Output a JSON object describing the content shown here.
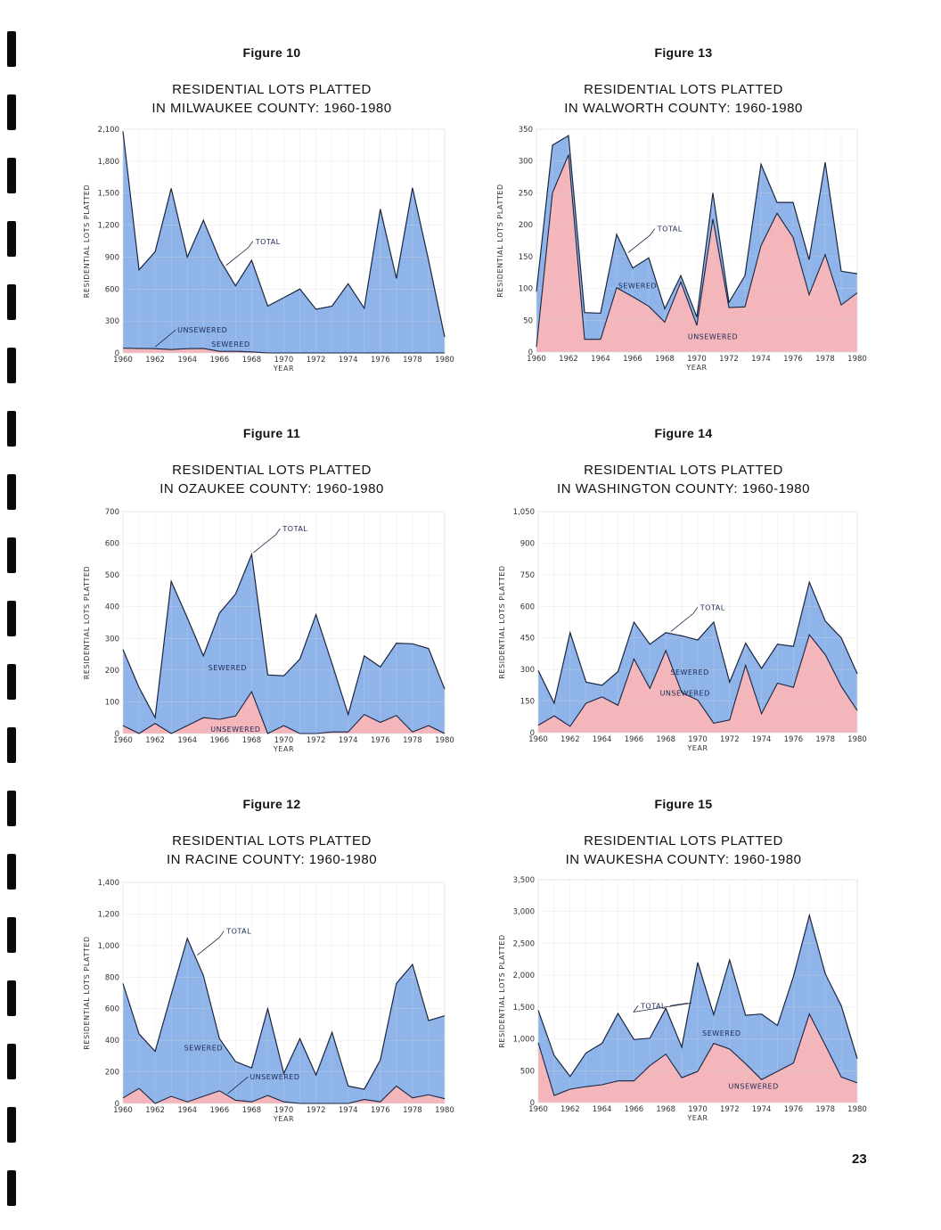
{
  "page": {
    "page_number": "23",
    "colors": {
      "sewered": "#8fb4ea",
      "unsewered": "#f4b5bb",
      "line": "#1a2540",
      "grid": "#d9d9d9"
    }
  },
  "chart_data": [
    {
      "id": "fig10",
      "figure_label": "Figure 10",
      "title_line1": "RESIDENTIAL LOTS PLATTED",
      "title_line2": "IN MILWAUKEE COUNTY: 1960-1980",
      "type": "area",
      "stacked": true,
      "xlabel": "YEAR",
      "ylabel": "RESIDENTIAL LOTS PLATTED",
      "ylim": [
        0,
        2100
      ],
      "yticks": [
        0,
        300,
        600,
        900,
        1200,
        1500,
        1800,
        2100
      ],
      "ytick_labels": [
        "0",
        "300",
        "600",
        "900",
        "1,200",
        "1,500",
        "1,800",
        "2,100"
      ],
      "xlim": [
        1960,
        1980
      ],
      "xticks": [
        1960,
        1962,
        1964,
        1966,
        1968,
        1970,
        1972,
        1974,
        1976,
        1978,
        1980
      ],
      "grid": true,
      "x": [
        1960,
        1961,
        1962,
        1963,
        1964,
        1965,
        1966,
        1967,
        1968,
        1969,
        1970,
        1971,
        1972,
        1973,
        1974,
        1975,
        1976,
        1977,
        1978,
        1979,
        1980
      ],
      "series": [
        {
          "name": "TOTAL",
          "values": [
            2080,
            780,
            950,
            1545,
            900,
            1245,
            880,
            630,
            870,
            440,
            520,
            600,
            410,
            440,
            650,
            420,
            1350,
            700,
            1550,
            870,
            150
          ]
        },
        {
          "name": "UNSEWERED",
          "values": [
            45,
            42,
            40,
            32,
            40,
            42,
            15,
            15,
            10,
            0,
            0,
            0,
            0,
            0,
            0,
            0,
            0,
            0,
            0,
            0,
            0
          ]
        }
      ],
      "annotations": [
        {
          "text": "TOTAL",
          "points_to": "total",
          "year": 1966.3
        },
        {
          "text": "SEWERED",
          "area": "sewered"
        },
        {
          "text": "UNSEWERED",
          "points_to": "unsewered",
          "year": 1962
        }
      ]
    },
    {
      "id": "fig13",
      "figure_label": "Figure 13",
      "title_line1": "RESIDENTIAL LOTS PLATTED",
      "title_line2": "IN WALWORTH COUNTY: 1960-1980",
      "type": "area",
      "stacked": true,
      "xlabel": "YEAR",
      "ylabel": "RESIDENTIAL LOTS PLATTED",
      "ylim": [
        0,
        350
      ],
      "yticks": [
        0,
        50,
        100,
        150,
        200,
        250,
        300,
        350
      ],
      "ytick_labels": [
        "0",
        "50",
        "100",
        "150",
        "200",
        "250",
        "300",
        "350"
      ],
      "xlim": [
        1960,
        1980
      ],
      "xticks": [
        1960,
        1962,
        1964,
        1966,
        1968,
        1970,
        1972,
        1974,
        1976,
        1978,
        1980
      ],
      "grid": true,
      "x": [
        1960,
        1961,
        1962,
        1963,
        1964,
        1965,
        1966,
        1967,
        1968,
        1969,
        1970,
        1971,
        1972,
        1973,
        1974,
        1975,
        1976,
        1977,
        1978,
        1979,
        1980
      ],
      "series": [
        {
          "name": "TOTAL",
          "values": [
            95,
            325,
            340,
            62,
            61,
            185,
            132,
            148,
            68,
            120,
            55,
            250,
            78,
            120,
            295,
            235,
            235,
            145,
            298,
            127,
            123
          ]
        },
        {
          "name": "UNSEWERED",
          "values": [
            8,
            250,
            310,
            20,
            20,
            101,
            87,
            72,
            47,
            110,
            42,
            209,
            70,
            71,
            167,
            218,
            180,
            90,
            153,
            74,
            93
          ]
        }
      ],
      "annotations": [
        {
          "text": "TOTAL",
          "points_to": "total",
          "year": 1965.6
        },
        {
          "text": "SEWERED",
          "area": "sewered"
        },
        {
          "text": "UNSEWERED",
          "area": "unsewered"
        }
      ]
    },
    {
      "id": "fig11",
      "figure_label": "Figure 11",
      "title_line1": "RESIDENTIAL LOTS PLATTED",
      "title_line2": "IN OZAUKEE COUNTY: 1960-1980",
      "type": "area",
      "stacked": true,
      "xlabel": "YEAR",
      "ylabel": "RESIDENTIAL LOTS PLATTED",
      "ylim": [
        0,
        700
      ],
      "yticks": [
        0,
        100,
        200,
        300,
        400,
        500,
        600,
        700
      ],
      "ytick_labels": [
        "0",
        "100",
        "200",
        "300",
        "400",
        "500",
        "600",
        "700"
      ],
      "xlim": [
        1960,
        1980
      ],
      "xticks": [
        1960,
        1962,
        1964,
        1966,
        1968,
        1970,
        1972,
        1974,
        1976,
        1978,
        1980
      ],
      "grid": true,
      "x": [
        1960,
        1961,
        1962,
        1963,
        1964,
        1965,
        1966,
        1967,
        1968,
        1969,
        1970,
        1971,
        1972,
        1973,
        1974,
        1975,
        1976,
        1977,
        1978,
        1979,
        1980
      ],
      "series": [
        {
          "name": "TOTAL",
          "values": [
            265,
            145,
            50,
            480,
            365,
            245,
            380,
            440,
            565,
            185,
            182,
            235,
            375,
            220,
            60,
            245,
            210,
            285,
            283,
            268,
            140
          ]
        },
        {
          "name": "UNSEWERED",
          "values": [
            25,
            0,
            32,
            0,
            25,
            50,
            45,
            55,
            132,
            0,
            25,
            0,
            0,
            5,
            5,
            60,
            35,
            57,
            5,
            25,
            0
          ]
        }
      ],
      "annotations": [
        {
          "text": "TOTAL",
          "points_to": "total",
          "year": 1968
        },
        {
          "text": "SEWERED",
          "area": "sewered"
        },
        {
          "text": "UNSEWERED",
          "area": "unsewered"
        }
      ]
    },
    {
      "id": "fig14",
      "figure_label": "Figure 14",
      "title_line1": "RESIDENTIAL LOTS PLATTED",
      "title_line2": "IN WASHINGTON COUNTY: 1960-1980",
      "type": "area",
      "stacked": true,
      "xlabel": "YEAR",
      "ylabel": "RESIDENTIAL LOTS PLATTED",
      "ylim": [
        0,
        1050
      ],
      "yticks": [
        0,
        150,
        300,
        450,
        600,
        750,
        900,
        1050
      ],
      "ytick_labels": [
        "0",
        "150",
        "300",
        "450",
        "600",
        "750",
        "900",
        "1,050"
      ],
      "xlim": [
        1960,
        1980
      ],
      "xticks": [
        1960,
        1962,
        1964,
        1966,
        1968,
        1970,
        1972,
        1974,
        1976,
        1978,
        1980
      ],
      "grid": true,
      "x": [
        1960,
        1961,
        1962,
        1963,
        1964,
        1965,
        1966,
        1967,
        1968,
        1969,
        1970,
        1971,
        1972,
        1973,
        1974,
        1975,
        1976,
        1977,
        1978,
        1979,
        1980
      ],
      "series": [
        {
          "name": "TOTAL",
          "values": [
            295,
            140,
            475,
            240,
            225,
            290,
            525,
            420,
            475,
            460,
            440,
            525,
            240,
            425,
            305,
            420,
            410,
            715,
            530,
            450,
            280
          ]
        },
        {
          "name": "UNSEWERED",
          "values": [
            35,
            80,
            30,
            140,
            170,
            130,
            350,
            210,
            390,
            190,
            155,
            45,
            60,
            320,
            90,
            235,
            215,
            465,
            370,
            220,
            105
          ]
        }
      ],
      "annotations": [
        {
          "text": "TOTAL",
          "points_to": "total",
          "year": 1968.2
        },
        {
          "text": "SEWERED",
          "area": "sewered"
        },
        {
          "text": "UNSEWERED",
          "area": "unsewered"
        }
      ]
    },
    {
      "id": "fig12",
      "figure_label": "Figure 12",
      "title_line1": "RESIDENTIAL LOTS PLATTED",
      "title_line2": "IN RACINE COUNTY: 1960-1980",
      "type": "area",
      "stacked": true,
      "xlabel": "YEAR",
      "ylabel": "RESIDENTIAL LOTS PLATTED",
      "ylim": [
        0,
        1400
      ],
      "yticks": [
        0,
        200,
        400,
        600,
        800,
        1000,
        1200,
        1400
      ],
      "ytick_labels": [
        "0",
        "200",
        "400",
        "600",
        "800",
        "1,000",
        "1,200",
        "1,400"
      ],
      "xlim": [
        1960,
        1980
      ],
      "xticks": [
        1960,
        1962,
        1964,
        1966,
        1968,
        1970,
        1972,
        1974,
        1976,
        1978,
        1980
      ],
      "grid": true,
      "x": [
        1960,
        1961,
        1962,
        1963,
        1964,
        1965,
        1966,
        1967,
        1968,
        1969,
        1970,
        1971,
        1972,
        1973,
        1974,
        1975,
        1976,
        1977,
        1978,
        1979,
        1980
      ],
      "series": [
        {
          "name": "TOTAL",
          "values": [
            760,
            440,
            330,
            690,
            1045,
            810,
            410,
            265,
            225,
            600,
            190,
            410,
            180,
            450,
            110,
            90,
            275,
            760,
            880,
            525,
            555
          ]
        },
        {
          "name": "UNSEWERED",
          "values": [
            35,
            95,
            0,
            45,
            10,
            45,
            80,
            20,
            10,
            50,
            10,
            0,
            0,
            0,
            0,
            25,
            10,
            110,
            35,
            55,
            30
          ]
        }
      ],
      "annotations": [
        {
          "text": "TOTAL",
          "points_to": "total",
          "year": 1964.5
        },
        {
          "text": "SEWERED",
          "area": "sewered"
        },
        {
          "text": "UNSEWERED",
          "points_to": "unsewered",
          "year": 1966.5
        }
      ]
    },
    {
      "id": "fig15",
      "figure_label": "Figure 15",
      "title_line1": "RESIDENTIAL LOTS PLATTED",
      "title_line2": "IN WAUKESHA COUNTY: 1960-1980",
      "type": "area",
      "stacked": true,
      "xlabel": "YEAR",
      "ylabel": "RESIDENTIAL LOTS PLATTED",
      "ylim": [
        0,
        3500
      ],
      "yticks": [
        0,
        500,
        1000,
        1500,
        2000,
        2500,
        3000,
        3500
      ],
      "ytick_labels": [
        "0",
        "500",
        "1,000",
        "1,500",
        "2,000",
        "2,500",
        "3,000",
        "3,500"
      ],
      "xlim": [
        1960,
        1980
      ],
      "xticks": [
        1960,
        1962,
        1964,
        1966,
        1968,
        1970,
        1972,
        1974,
        1976,
        1978,
        1980
      ],
      "grid": true,
      "x": [
        1960,
        1961,
        1962,
        1963,
        1964,
        1965,
        1966,
        1967,
        1968,
        1969,
        1970,
        1971,
        1972,
        1973,
        1974,
        1975,
        1976,
        1977,
        1978,
        1979,
        1980
      ],
      "series": [
        {
          "name": "TOTAL",
          "values": [
            1450,
            740,
            410,
            780,
            930,
            1400,
            990,
            1010,
            1480,
            870,
            2200,
            1380,
            2240,
            1370,
            1390,
            1210,
            1980,
            2940,
            2020,
            1520,
            690
          ]
        },
        {
          "name": "UNSEWERED",
          "values": [
            940,
            110,
            210,
            250,
            280,
            340,
            340,
            580,
            760,
            390,
            490,
            930,
            840,
            610,
            360,
            490,
            620,
            1390,
            900,
            400,
            310
          ]
        }
      ],
      "annotations": [
        {
          "text": "TOTAL",
          "points_to": "total",
          "year": 1969.5
        },
        {
          "text": "SEWERED",
          "area": "sewered"
        },
        {
          "text": "UNSEWERED",
          "area": "unsewered"
        }
      ]
    }
  ]
}
